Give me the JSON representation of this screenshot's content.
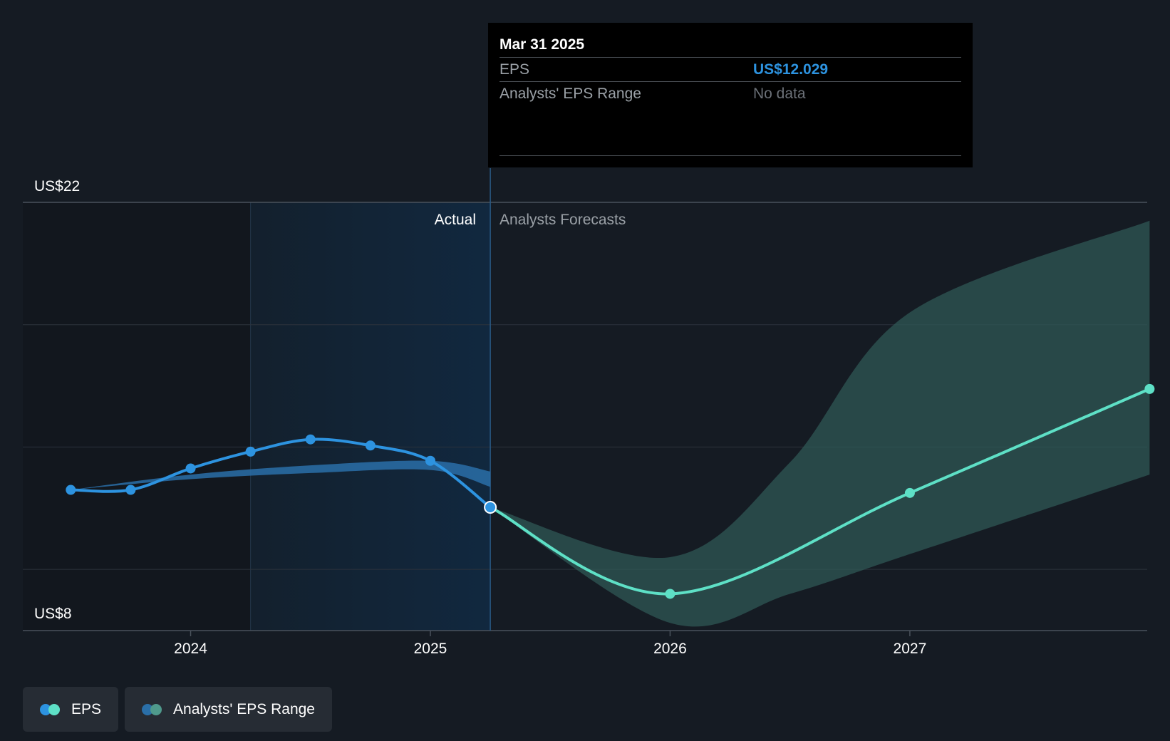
{
  "chart_data": {
    "type": "line",
    "y_labels": {
      "top": "US$22",
      "bottom": "US$8"
    },
    "ylim": [
      8,
      22
    ],
    "x_ticks": [
      {
        "value": 2024,
        "label": "2024"
      },
      {
        "value": 2025,
        "label": "2025"
      },
      {
        "value": 2026,
        "label": "2026"
      },
      {
        "value": 2027,
        "label": "2027"
      }
    ],
    "xlim": [
      2023.3,
      2027.99
    ],
    "section_labels": {
      "actual": "Actual",
      "forecast": "Analysts Forecasts"
    },
    "divider_x": 2025.25,
    "highlight_start_x": 2024.25,
    "series": [
      {
        "name": "EPS",
        "color": "#2d93e0",
        "x": [
          2023.5,
          2023.75,
          2024.0,
          2024.25,
          2024.5,
          2024.75,
          2025.0,
          2025.25
        ],
        "y": [
          12.6,
          12.6,
          13.3,
          13.85,
          14.25,
          14.05,
          13.55,
          12.03
        ]
      },
      {
        "name": "EPS Forecast",
        "color": "#5ee0c6",
        "x": [
          2025.25,
          2026.0,
          2027.0,
          2028.0
        ],
        "y": [
          12.03,
          9.2,
          12.5,
          15.9
        ]
      }
    ],
    "ranges": [
      {
        "name": "Analysts' EPS Range (actual)",
        "color": "#2a6fa8",
        "x": [
          2023.5,
          2024.0,
          2024.5,
          2025.0,
          2025.25
        ],
        "upper": [
          12.6,
          13.1,
          13.4,
          13.55,
          13.2
        ],
        "lower": [
          12.6,
          12.95,
          13.15,
          13.25,
          12.7
        ]
      },
      {
        "name": "Analysts' EPS Range (forecast)",
        "color": "#2f5855",
        "x": [
          2025.25,
          2026.0,
          2026.5,
          2027.0,
          2028.0
        ],
        "upper": [
          12.03,
          10.4,
          13.5,
          18.4,
          21.4
        ],
        "lower": [
          12.03,
          8.25,
          9.2,
          10.5,
          13.1
        ]
      }
    ]
  },
  "tooltip": {
    "date": "Mar 31 2025",
    "rows": [
      {
        "key": "EPS",
        "value": "US$12.029"
      },
      {
        "key": "Analysts' EPS Range",
        "value": "No data"
      }
    ]
  },
  "legend": [
    {
      "label": "EPS",
      "colors": [
        "#2d93e0",
        "#5ee0c6"
      ]
    },
    {
      "label": "Analysts' EPS Range",
      "colors": [
        "#2a6fa8",
        "#4f9a8c"
      ]
    }
  ]
}
